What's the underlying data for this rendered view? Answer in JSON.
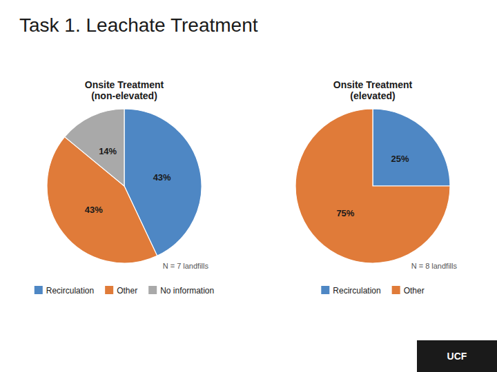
{
  "title": "Task 1. Leachate Treatment",
  "annotations": [
    "UCF"
  ],
  "chart_data": [
    {
      "type": "pie",
      "title": "Onsite Treatment\n(non-elevated)",
      "categories": [
        "Recirculation",
        "Other",
        "No information"
      ],
      "values": [
        43,
        43,
        14
      ],
      "value_labels": [
        "43%",
        "43%",
        "14%"
      ],
      "colors": [
        "#4e87c4",
        "#e07b39",
        "#a9a9a9"
      ],
      "data_labels": true,
      "legend": "bottom",
      "annotations": [
        "N = 7 landfills"
      ]
    },
    {
      "type": "pie",
      "title": "Onsite Treatment\n(elevated)",
      "categories": [
        "Recirculation",
        "Other"
      ],
      "values": [
        25,
        75
      ],
      "value_labels": [
        "25%",
        "75%"
      ],
      "colors": [
        "#4e87c4",
        "#e07b39"
      ],
      "data_labels": true,
      "legend": "bottom",
      "annotations": [
        "N = 8 landfills"
      ]
    }
  ]
}
